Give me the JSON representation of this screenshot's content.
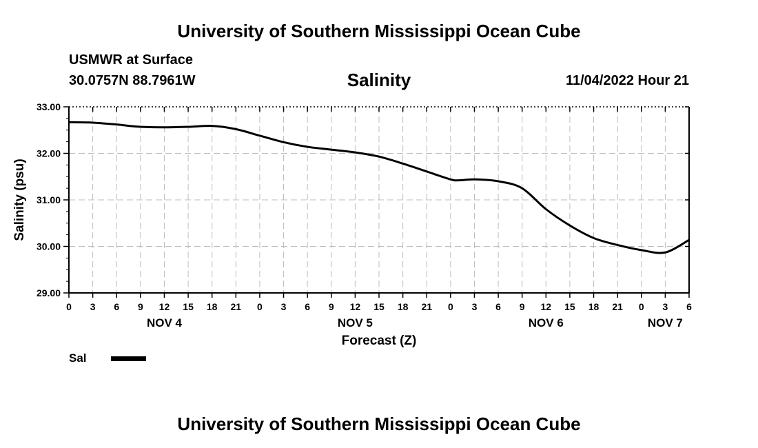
{
  "header": {
    "title": "University of Southern Mississippi Ocean Cube",
    "station": "USMWR at Surface",
    "coords": "30.0757N  88.7961W",
    "date": "11/04/2022 Hour 21"
  },
  "footer": {
    "title": "University of Southern Mississippi Ocean Cube"
  },
  "legend": {
    "label": "Sal",
    "color": "#000000"
  },
  "chart_data": {
    "type": "line",
    "title": "Salinity",
    "xlabel": "Forecast (Z)",
    "ylabel": "Salinity (psu)",
    "ylim": [
      29,
      33
    ],
    "xlim": [
      0,
      78
    ],
    "x_unit": "hours since 11/04/2022 00Z",
    "yticks": [
      "29.00",
      "30.00",
      "31.00",
      "32.00",
      "33.00"
    ],
    "xticks": [
      "0",
      "3",
      "6",
      "9",
      "12",
      "15",
      "18",
      "21",
      "0",
      "3",
      "6",
      "9",
      "12",
      "15",
      "18",
      "21",
      "0",
      "3",
      "6",
      "9",
      "12",
      "15",
      "18",
      "21",
      "0",
      "3",
      "6"
    ],
    "day_labels": [
      {
        "label": "NOV 4",
        "x": 12
      },
      {
        "label": "NOV 5",
        "x": 36
      },
      {
        "label": "NOV 6",
        "x": 60
      },
      {
        "label": "NOV 7",
        "x": 75
      }
    ],
    "grid": true,
    "series": [
      {
        "name": "Sal",
        "x": [
          0,
          3,
          6,
          9,
          12,
          15,
          18,
          21,
          24,
          27,
          30,
          33,
          36,
          39,
          42,
          45,
          48,
          49,
          51,
          54,
          57,
          60,
          63,
          66,
          69,
          72,
          75,
          78
        ],
        "values": [
          32.67,
          32.66,
          32.62,
          32.57,
          32.56,
          32.57,
          32.59,
          32.52,
          32.38,
          32.24,
          32.14,
          32.08,
          32.02,
          31.93,
          31.78,
          31.61,
          31.44,
          31.42,
          31.44,
          31.4,
          31.25,
          30.8,
          30.45,
          30.18,
          30.03,
          29.92,
          29.87,
          30.14
        ]
      }
    ]
  }
}
